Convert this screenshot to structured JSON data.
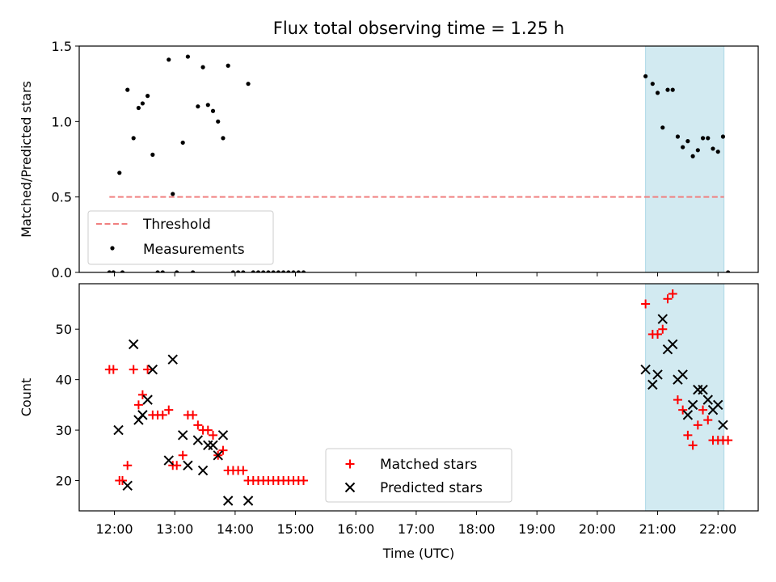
{
  "title": "Flux total observing time = 1.25 h",
  "colors": {
    "threshold": "#f08080",
    "measurement": "#000000",
    "matched": "#ff0000",
    "predicted": "#000000",
    "span_fill": "#add8e6"
  },
  "chart_data": [
    {
      "type": "scatter",
      "panel": "top",
      "ylabel": "Matched/Predicted stars",
      "xlim": [
        "11:25",
        "22:40"
      ],
      "ylim": [
        0,
        1.5
      ],
      "yticks": [
        0.0,
        0.5,
        1.0,
        1.5
      ],
      "ytick_labels": [
        "0.0",
        "0.5",
        "1.0",
        "1.5"
      ],
      "legend": {
        "position": "lower-left",
        "entries": [
          "Threshold",
          "Measurements"
        ]
      },
      "highlight_span": [
        "20:48",
        "22:06"
      ],
      "threshold": {
        "name": "Threshold",
        "y": 0.5,
        "x_range": [
          "11:55",
          "22:06"
        ]
      },
      "series": [
        {
          "name": "Measurements",
          "points": [
            [
              "11:55",
              0.0
            ],
            [
              "11:59",
              0.0
            ],
            [
              "12:05",
              0.66
            ],
            [
              "12:08",
              0.0
            ],
            [
              "12:13",
              1.21
            ],
            [
              "12:19",
              0.89
            ],
            [
              "12:24",
              1.09
            ],
            [
              "12:28",
              1.12
            ],
            [
              "12:33",
              1.17
            ],
            [
              "12:38",
              0.78
            ],
            [
              "12:43",
              0.0
            ],
            [
              "12:48",
              0.0
            ],
            [
              "12:54",
              1.41
            ],
            [
              "12:58",
              0.52
            ],
            [
              "13:02",
              0.0
            ],
            [
              "13:08",
              0.86
            ],
            [
              "13:13",
              1.43
            ],
            [
              "13:18",
              0.0
            ],
            [
              "13:23",
              1.1
            ],
            [
              "13:28",
              1.36
            ],
            [
              "13:33",
              1.11
            ],
            [
              "13:38",
              1.07
            ],
            [
              "13:43",
              1.0
            ],
            [
              "13:48",
              0.89
            ],
            [
              "13:53",
              1.37
            ],
            [
              "13:58",
              0.0
            ],
            [
              "14:03",
              0.0
            ],
            [
              "14:08",
              0.0
            ],
            [
              "14:13",
              1.25
            ],
            [
              "14:18",
              0.0
            ],
            [
              "14:23",
              0.0
            ],
            [
              "14:28",
              0.0
            ],
            [
              "14:33",
              0.0
            ],
            [
              "14:38",
              0.0
            ],
            [
              "14:43",
              0.0
            ],
            [
              "14:48",
              0.0
            ],
            [
              "14:53",
              0.0
            ],
            [
              "14:58",
              0.0
            ],
            [
              "15:03",
              0.0
            ],
            [
              "15:08",
              0.0
            ],
            [
              "20:48",
              1.3
            ],
            [
              "20:55",
              1.25
            ],
            [
              "21:00",
              1.19
            ],
            [
              "21:05",
              0.96
            ],
            [
              "21:10",
              1.21
            ],
            [
              "21:15",
              1.21
            ],
            [
              "21:20",
              0.9
            ],
            [
              "21:25",
              0.83
            ],
            [
              "21:30",
              0.87
            ],
            [
              "21:35",
              0.77
            ],
            [
              "21:40",
              0.81
            ],
            [
              "21:45",
              0.89
            ],
            [
              "21:50",
              0.89
            ],
            [
              "21:55",
              0.82
            ],
            [
              "22:00",
              0.8
            ],
            [
              "22:05",
              0.9
            ],
            [
              "22:10",
              0.0
            ]
          ]
        }
      ]
    },
    {
      "type": "scatter",
      "panel": "bottom",
      "xlabel": "Time (UTC)",
      "ylabel": "Count",
      "xlim": [
        "11:25",
        "22:40"
      ],
      "ylim": [
        14,
        59
      ],
      "yticks": [
        20,
        30,
        40,
        50
      ],
      "ytick_labels": [
        "20",
        "30",
        "40",
        "50"
      ],
      "xticks": [
        "12:00",
        "13:00",
        "14:00",
        "15:00",
        "16:00",
        "17:00",
        "18:00",
        "19:00",
        "20:00",
        "21:00",
        "22:00"
      ],
      "legend": {
        "position": "lower-center",
        "entries": [
          "Matched stars",
          "Predicted stars"
        ]
      },
      "highlight_span": [
        "20:48",
        "22:06"
      ],
      "series": [
        {
          "name": "Matched stars",
          "marker": "plus",
          "points": [
            [
              "11:55",
              42
            ],
            [
              "11:59",
              42
            ],
            [
              "12:05",
              20
            ],
            [
              "12:08",
              20
            ],
            [
              "12:13",
              23
            ],
            [
              "12:19",
              42
            ],
            [
              "12:24",
              35
            ],
            [
              "12:28",
              37
            ],
            [
              "12:33",
              42
            ],
            [
              "12:38",
              33
            ],
            [
              "12:43",
              33
            ],
            [
              "12:48",
              33
            ],
            [
              "12:54",
              34
            ],
            [
              "12:58",
              23
            ],
            [
              "13:02",
              23
            ],
            [
              "13:08",
              25
            ],
            [
              "13:13",
              33
            ],
            [
              "13:18",
              33
            ],
            [
              "13:23",
              31
            ],
            [
              "13:28",
              30
            ],
            [
              "13:33",
              30
            ],
            [
              "13:38",
              29
            ],
            [
              "13:43",
              25
            ],
            [
              "13:48",
              26
            ],
            [
              "13:53",
              22
            ],
            [
              "13:58",
              22
            ],
            [
              "14:03",
              22
            ],
            [
              "14:08",
              22
            ],
            [
              "14:13",
              20
            ],
            [
              "14:18",
              20
            ],
            [
              "14:23",
              20
            ],
            [
              "14:28",
              20
            ],
            [
              "14:33",
              20
            ],
            [
              "14:38",
              20
            ],
            [
              "14:43",
              20
            ],
            [
              "14:48",
              20
            ],
            [
              "14:53",
              20
            ],
            [
              "14:58",
              20
            ],
            [
              "15:03",
              20
            ],
            [
              "15:08",
              20
            ],
            [
              "20:48",
              55
            ],
            [
              "20:55",
              49
            ],
            [
              "21:00",
              49
            ],
            [
              "21:05",
              50
            ],
            [
              "21:10",
              56
            ],
            [
              "21:15",
              57
            ],
            [
              "21:20",
              36
            ],
            [
              "21:25",
              34
            ],
            [
              "21:30",
              29
            ],
            [
              "21:35",
              27
            ],
            [
              "21:40",
              31
            ],
            [
              "21:45",
              34
            ],
            [
              "21:50",
              32
            ],
            [
              "21:55",
              28
            ],
            [
              "22:00",
              28
            ],
            [
              "22:05",
              28
            ],
            [
              "22:10",
              28
            ]
          ]
        },
        {
          "name": "Predicted stars",
          "marker": "x",
          "points": [
            [
              "12:04",
              30
            ],
            [
              "12:13",
              19
            ],
            [
              "12:19",
              47
            ],
            [
              "12:24",
              32
            ],
            [
              "12:28",
              33
            ],
            [
              "12:33",
              36
            ],
            [
              "12:38",
              42
            ],
            [
              "12:54",
              24
            ],
            [
              "12:58",
              44
            ],
            [
              "13:08",
              29
            ],
            [
              "13:13",
              23
            ],
            [
              "13:23",
              28
            ],
            [
              "13:28",
              22
            ],
            [
              "13:33",
              27
            ],
            [
              "13:38",
              27
            ],
            [
              "13:43",
              25
            ],
            [
              "13:48",
              29
            ],
            [
              "13:53",
              16
            ],
            [
              "14:13",
              16
            ],
            [
              "20:48",
              42
            ],
            [
              "20:55",
              39
            ],
            [
              "21:00",
              41
            ],
            [
              "21:05",
              52
            ],
            [
              "21:10",
              46
            ],
            [
              "21:15",
              47
            ],
            [
              "21:20",
              40
            ],
            [
              "21:25",
              41
            ],
            [
              "21:30",
              33
            ],
            [
              "21:35",
              35
            ],
            [
              "21:40",
              38
            ],
            [
              "21:45",
              38
            ],
            [
              "21:50",
              36
            ],
            [
              "21:55",
              34
            ],
            [
              "22:00",
              35
            ],
            [
              "22:05",
              31
            ]
          ]
        }
      ]
    }
  ]
}
